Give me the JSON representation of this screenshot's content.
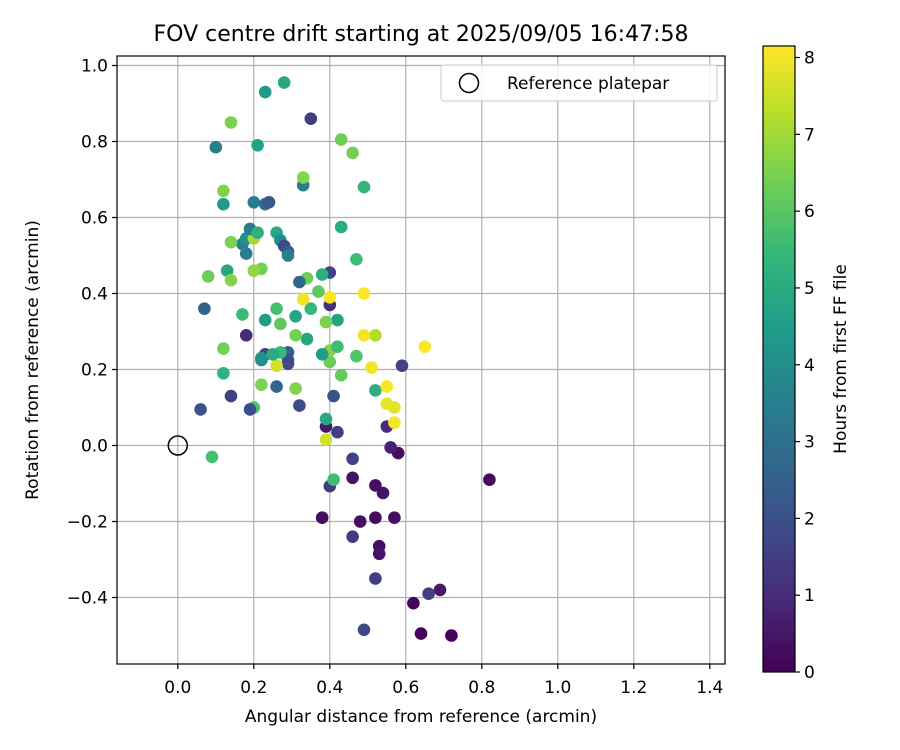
{
  "chart_data": {
    "type": "scatter",
    "title": "FOV centre drift starting at 2025/09/05 16:47:58",
    "xlabel": "Angular distance from reference (arcmin)",
    "ylabel": "Rotation from reference (arcmin)",
    "xlim": [
      -0.16,
      1.44
    ],
    "ylim": [
      -0.575,
      1.025
    ],
    "xticks": [
      0.0,
      0.2,
      0.4,
      0.6,
      0.8,
      1.0,
      1.2,
      1.4
    ],
    "xtick_labels": [
      "0.0",
      "0.2",
      "0.4",
      "0.6",
      "0.8",
      "1.0",
      "1.2",
      "1.4"
    ],
    "yticks": [
      -0.4,
      -0.2,
      0.0,
      0.2,
      0.4,
      0.6,
      0.8,
      1.0
    ],
    "ytick_labels": [
      "−0.4",
      "−0.2",
      "0.0",
      "0.2",
      "0.4",
      "0.6",
      "0.8",
      "1.0"
    ],
    "grid": true,
    "legend": {
      "placement": "top-right",
      "entries": [
        {
          "label": "Reference platepar",
          "marker": "hollow-circle",
          "x": 0.0,
          "y": 0.0
        }
      ]
    },
    "colorbar": {
      "label": "Hours from first FF file",
      "colormap": "viridis",
      "range": [
        0,
        8.15
      ],
      "ticks": [
        0,
        1,
        2,
        3,
        4,
        5,
        6,
        7,
        8
      ],
      "tick_labels": [
        "0",
        "1",
        "2",
        "3",
        "4",
        "5",
        "6",
        "7",
        "8"
      ]
    },
    "colormap_stops": [
      "#440154",
      "#482878",
      "#3e4a89",
      "#31688e",
      "#26828e",
      "#1f9e89",
      "#35b779",
      "#6ece58",
      "#b5de2b",
      "#fde725"
    ],
    "series": [
      {
        "marker": "filled-circle",
        "color_by": "hours",
        "points": [
          {
            "x": 0.72,
            "y": -0.5,
            "c": 0.05
          },
          {
            "x": 0.64,
            "y": -0.495,
            "c": 0.1
          },
          {
            "x": 0.62,
            "y": -0.415,
            "c": 0.15
          },
          {
            "x": 0.69,
            "y": -0.38,
            "c": 0.55
          },
          {
            "x": 0.66,
            "y": -0.39,
            "c": 1.5
          },
          {
            "x": 0.49,
            "y": -0.485,
            "c": 1.75
          },
          {
            "x": 0.52,
            "y": -0.35,
            "c": 1.5
          },
          {
            "x": 0.53,
            "y": -0.265,
            "c": 0.35
          },
          {
            "x": 0.53,
            "y": -0.285,
            "c": 0.45
          },
          {
            "x": 0.48,
            "y": -0.2,
            "c": 0.35
          },
          {
            "x": 0.52,
            "y": -0.19,
            "c": 0.25
          },
          {
            "x": 0.38,
            "y": -0.19,
            "c": 0.3
          },
          {
            "x": 0.46,
            "y": -0.24,
            "c": 1.4
          },
          {
            "x": 0.57,
            "y": -0.19,
            "c": 0.35
          },
          {
            "x": 0.52,
            "y": -0.105,
            "c": 0.35
          },
          {
            "x": 0.54,
            "y": -0.125,
            "c": 0.45
          },
          {
            "x": 0.46,
            "y": -0.085,
            "c": 0.4
          },
          {
            "x": 0.4,
            "y": -0.107,
            "c": 1.5
          },
          {
            "x": 0.41,
            "y": -0.09,
            "c": 5.6
          },
          {
            "x": 0.46,
            "y": -0.035,
            "c": 1.6
          },
          {
            "x": 0.82,
            "y": -0.09,
            "c": 0.25
          },
          {
            "x": 0.58,
            "y": -0.02,
            "c": 0.35
          },
          {
            "x": 0.56,
            "y": -0.005,
            "c": 0.75
          },
          {
            "x": 0.39,
            "y": 0.05,
            "c": 0.6
          },
          {
            "x": 0.42,
            "y": 0.035,
            "c": 1.5
          },
          {
            "x": 0.39,
            "y": 0.07,
            "c": 4.9
          },
          {
            "x": 0.39,
            "y": 0.015,
            "c": 7.6
          },
          {
            "x": 0.41,
            "y": 0.13,
            "c": 2.1
          },
          {
            "x": 0.32,
            "y": 0.105,
            "c": 1.9
          },
          {
            "x": 0.55,
            "y": 0.05,
            "c": 1.0
          },
          {
            "x": 0.57,
            "y": 0.06,
            "c": 8.0
          },
          {
            "x": 0.57,
            "y": 0.1,
            "c": 7.8
          },
          {
            "x": 0.55,
            "y": 0.11,
            "c": 7.9
          },
          {
            "x": 0.52,
            "y": 0.145,
            "c": 5.1
          },
          {
            "x": 0.55,
            "y": 0.155,
            "c": 8.1
          },
          {
            "x": 0.59,
            "y": 0.21,
            "c": 1.6
          },
          {
            "x": 0.51,
            "y": 0.205,
            "c": 8.0
          },
          {
            "x": 0.65,
            "y": 0.26,
            "c": 8.1
          },
          {
            "x": 0.52,
            "y": 0.29,
            "c": 7.2
          },
          {
            "x": 0.49,
            "y": 0.29,
            "c": 8.0
          },
          {
            "x": 0.43,
            "y": 0.185,
            "c": 6.2
          },
          {
            "x": 0.47,
            "y": 0.235,
            "c": 5.9
          },
          {
            "x": 0.4,
            "y": 0.22,
            "c": 6.3
          },
          {
            "x": 0.4,
            "y": 0.25,
            "c": 6.6
          },
          {
            "x": 0.42,
            "y": 0.26,
            "c": 5.6
          },
          {
            "x": 0.38,
            "y": 0.24,
            "c": 4.5
          },
          {
            "x": 0.49,
            "y": 0.4,
            "c": 8.1
          },
          {
            "x": 0.42,
            "y": 0.33,
            "c": 4.7
          },
          {
            "x": 0.39,
            "y": 0.325,
            "c": 6.5
          },
          {
            "x": 0.4,
            "y": 0.37,
            "c": 1.2
          },
          {
            "x": 0.4,
            "y": 0.39,
            "c": 8.1
          },
          {
            "x": 0.4,
            "y": 0.455,
            "c": 1.6
          },
          {
            "x": 0.38,
            "y": 0.45,
            "c": 5.1
          },
          {
            "x": 0.37,
            "y": 0.405,
            "c": 6.1
          },
          {
            "x": 0.35,
            "y": 0.36,
            "c": 5.4
          },
          {
            "x": 0.34,
            "y": 0.28,
            "c": 4.9
          },
          {
            "x": 0.33,
            "y": 0.385,
            "c": 8.0
          },
          {
            "x": 0.34,
            "y": 0.44,
            "c": 6.3
          },
          {
            "x": 0.32,
            "y": 0.43,
            "c": 2.7
          },
          {
            "x": 0.31,
            "y": 0.34,
            "c": 4.8
          },
          {
            "x": 0.31,
            "y": 0.29,
            "c": 6.4
          },
          {
            "x": 0.31,
            "y": 0.15,
            "c": 6.6
          },
          {
            "x": 0.29,
            "y": 0.245,
            "c": 2.5
          },
          {
            "x": 0.29,
            "y": 0.225,
            "c": 2.0
          },
          {
            "x": 0.29,
            "y": 0.215,
            "c": 1.8
          },
          {
            "x": 0.27,
            "y": 0.245,
            "c": 5.5
          },
          {
            "x": 0.26,
            "y": 0.21,
            "c": 7.6
          },
          {
            "x": 0.26,
            "y": 0.155,
            "c": 2.6
          },
          {
            "x": 0.22,
            "y": 0.16,
            "c": 6.5
          },
          {
            "x": 0.2,
            "y": 0.1,
            "c": 5.8
          },
          {
            "x": 0.19,
            "y": 0.095,
            "c": 2.0
          },
          {
            "x": 0.22,
            "y": 0.225,
            "c": 3.8
          },
          {
            "x": 0.23,
            "y": 0.24,
            "c": 1.7
          },
          {
            "x": 0.22,
            "y": 0.23,
            "c": 4.1
          },
          {
            "x": 0.25,
            "y": 0.24,
            "c": 5.0
          },
          {
            "x": 0.26,
            "y": 0.36,
            "c": 5.7
          },
          {
            "x": 0.27,
            "y": 0.32,
            "c": 6.1
          },
          {
            "x": 0.23,
            "y": 0.33,
            "c": 4.5
          },
          {
            "x": 0.18,
            "y": 0.29,
            "c": 1.0
          },
          {
            "x": 0.17,
            "y": 0.345,
            "c": 5.5
          },
          {
            "x": 0.12,
            "y": 0.19,
            "c": 5.2
          },
          {
            "x": 0.12,
            "y": 0.255,
            "c": 6.4
          },
          {
            "x": 0.14,
            "y": 0.13,
            "c": 1.6
          },
          {
            "x": 0.06,
            "y": 0.095,
            "c": 2.1
          },
          {
            "x": 0.09,
            "y": -0.03,
            "c": 5.7
          },
          {
            "x": 0.07,
            "y": 0.36,
            "c": 2.5
          },
          {
            "x": 0.08,
            "y": 0.445,
            "c": 6.3
          },
          {
            "x": 0.13,
            "y": 0.46,
            "c": 4.8
          },
          {
            "x": 0.14,
            "y": 0.435,
            "c": 6.6
          },
          {
            "x": 0.22,
            "y": 0.465,
            "c": 6.4
          },
          {
            "x": 0.2,
            "y": 0.46,
            "c": 6.8
          },
          {
            "x": 0.18,
            "y": 0.505,
            "c": 3.4
          },
          {
            "x": 0.17,
            "y": 0.53,
            "c": 3.6
          },
          {
            "x": 0.18,
            "y": 0.545,
            "c": 4.1
          },
          {
            "x": 0.14,
            "y": 0.535,
            "c": 6.5
          },
          {
            "x": 0.2,
            "y": 0.545,
            "c": 7.0
          },
          {
            "x": 0.19,
            "y": 0.57,
            "c": 3.4
          },
          {
            "x": 0.21,
            "y": 0.56,
            "c": 5.2
          },
          {
            "x": 0.2,
            "y": 0.64,
            "c": 3.5
          },
          {
            "x": 0.23,
            "y": 0.635,
            "c": 2.9
          },
          {
            "x": 0.24,
            "y": 0.64,
            "c": 2.2
          },
          {
            "x": 0.26,
            "y": 0.56,
            "c": 4.9
          },
          {
            "x": 0.27,
            "y": 0.54,
            "c": 4.0
          },
          {
            "x": 0.28,
            "y": 0.525,
            "c": 1.8
          },
          {
            "x": 0.29,
            "y": 0.51,
            "c": 2.3
          },
          {
            "x": 0.29,
            "y": 0.5,
            "c": 3.6
          },
          {
            "x": 0.12,
            "y": 0.635,
            "c": 4.4
          },
          {
            "x": 0.12,
            "y": 0.67,
            "c": 6.6
          },
          {
            "x": 0.1,
            "y": 0.785,
            "c": 3.6
          },
          {
            "x": 0.14,
            "y": 0.85,
            "c": 6.5
          },
          {
            "x": 0.21,
            "y": 0.79,
            "c": 4.7
          },
          {
            "x": 0.23,
            "y": 0.93,
            "c": 4.4
          },
          {
            "x": 0.28,
            "y": 0.955,
            "c": 4.9
          },
          {
            "x": 0.33,
            "y": 0.685,
            "c": 3.4
          },
          {
            "x": 0.33,
            "y": 0.705,
            "c": 6.6
          },
          {
            "x": 0.35,
            "y": 0.86,
            "c": 1.5
          },
          {
            "x": 0.43,
            "y": 0.805,
            "c": 6.3
          },
          {
            "x": 0.46,
            "y": 0.77,
            "c": 6.4
          },
          {
            "x": 0.49,
            "y": 0.68,
            "c": 5.4
          },
          {
            "x": 0.43,
            "y": 0.575,
            "c": 5.0
          },
          {
            "x": 0.47,
            "y": 0.49,
            "c": 5.6
          }
        ]
      }
    ]
  }
}
